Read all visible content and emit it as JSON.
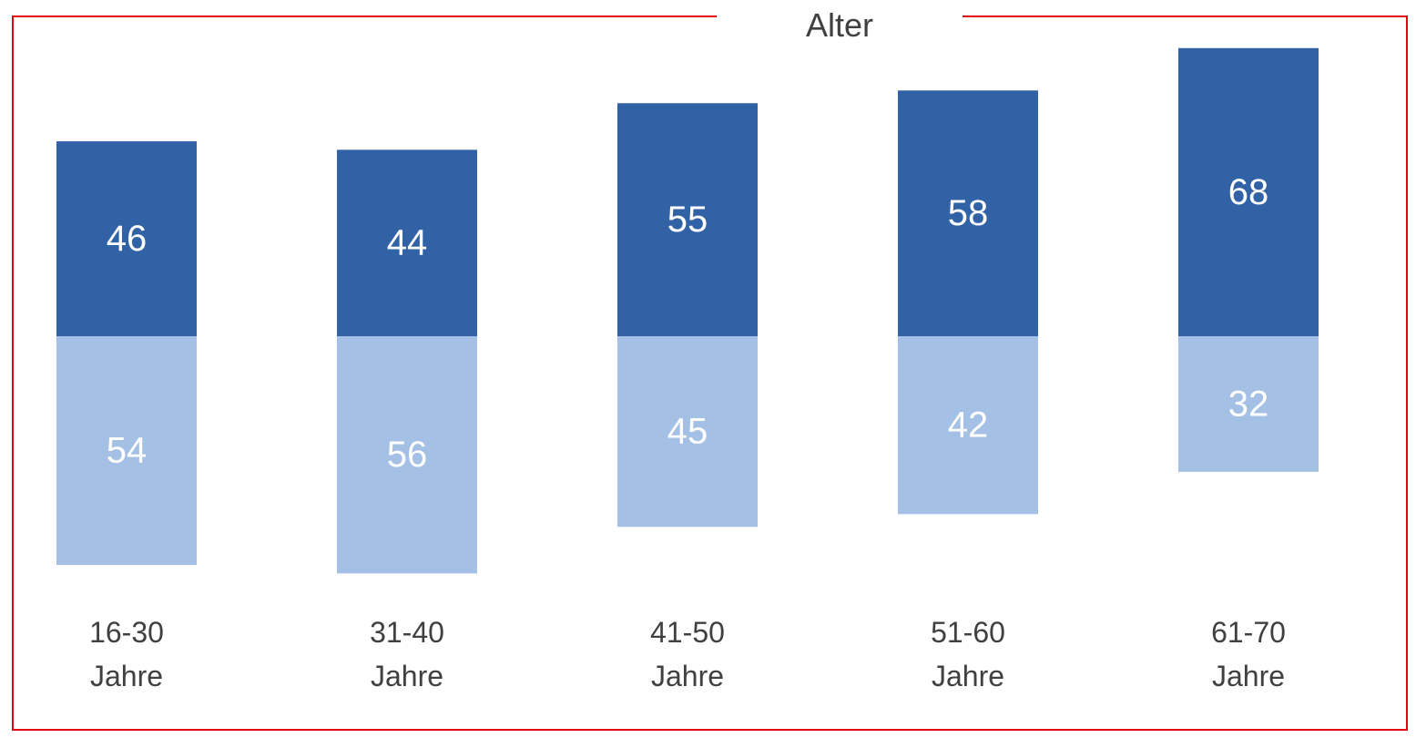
{
  "chart_data": {
    "type": "bar",
    "stacked": true,
    "title": "Alter",
    "categories": [
      [
        "16-30",
        "Jahre"
      ],
      [
        "31-40",
        "Jahre"
      ],
      [
        "41-50",
        "Jahre"
      ],
      [
        "51-60",
        "Jahre"
      ],
      [
        "61-70",
        "Jahre"
      ]
    ],
    "series": [
      {
        "values": [
          46,
          44,
          55,
          58,
          68
        ],
        "color": "#3162a5"
      },
      {
        "values": [
          54,
          56,
          45,
          42,
          32
        ],
        "color": "#a4c0e4"
      }
    ],
    "frame_color": "#e30613"
  }
}
